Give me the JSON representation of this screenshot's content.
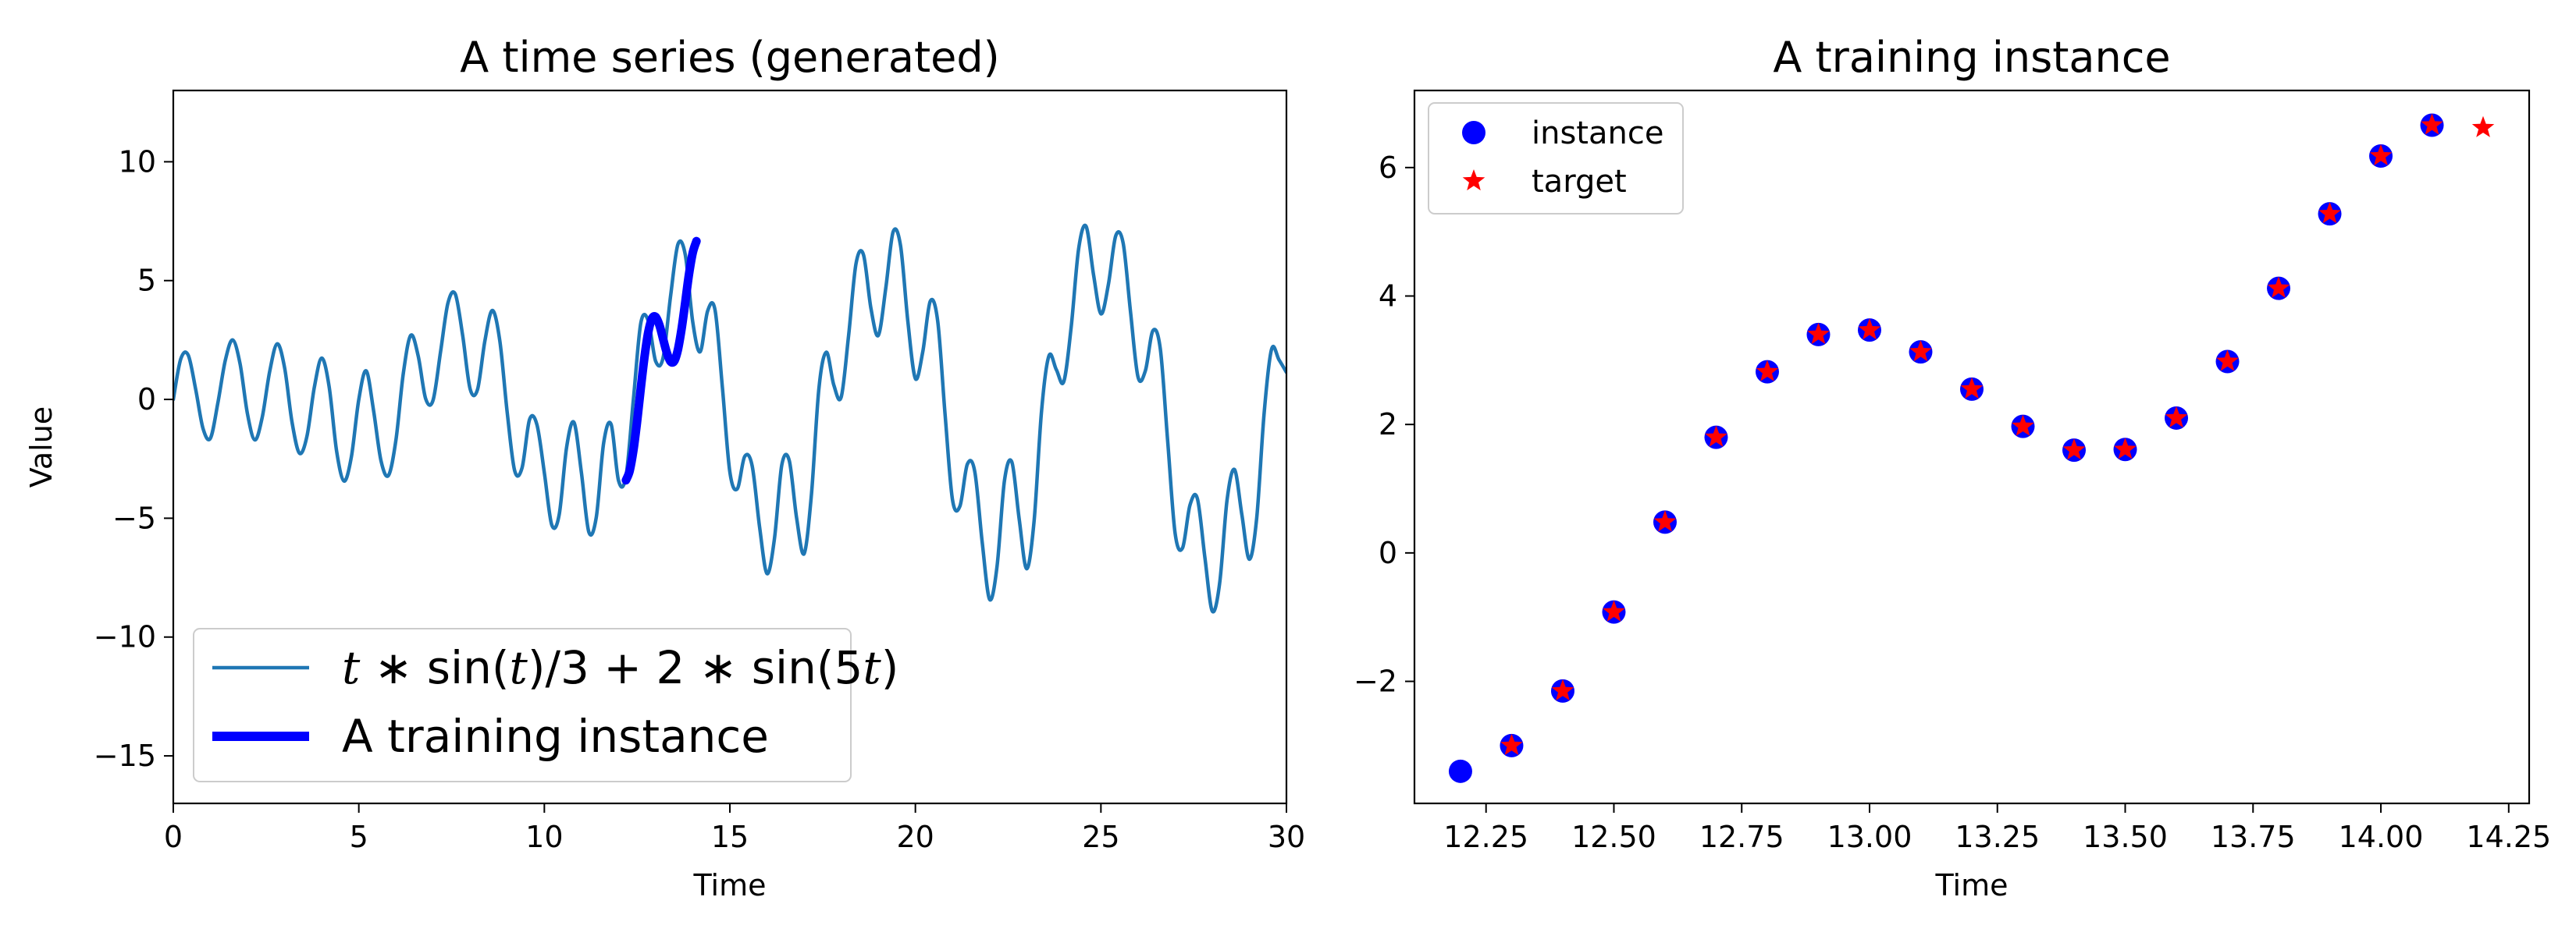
{
  "chart_data": [
    {
      "type": "line",
      "title": "A time series (generated)",
      "xlabel": "Time",
      "ylabel": "Value",
      "xlim": [
        0,
        30
      ],
      "ylim": [
        -17,
        13
      ],
      "xticks": [
        0,
        5,
        10,
        15,
        20,
        25,
        30
      ],
      "xtick_labels": [
        "0",
        "5",
        "10",
        "15",
        "20",
        "25",
        "30"
      ],
      "yticks": [
        -15,
        -10,
        -5,
        0,
        5,
        10
      ],
      "ytick_labels": [
        "−15",
        "−10",
        "−5",
        "0",
        "5",
        "10"
      ],
      "grid": false,
      "legend_placement": "lower-left",
      "series": [
        {
          "name": "t * sin(t)/3 + 2 * sin(5t)",
          "color": "#1f77b4",
          "x": [
            0.0,
            0.2,
            0.4,
            0.6,
            0.8,
            1.0,
            1.2,
            1.4,
            1.6,
            1.8,
            2.0,
            2.2,
            2.4,
            2.6,
            2.8,
            3.0,
            3.2,
            3.4,
            3.6,
            3.8,
            4.0,
            4.2,
            4.4,
            4.6,
            4.8,
            5.0,
            5.2,
            5.4,
            5.6,
            5.8,
            6.0,
            6.2,
            6.4,
            6.6,
            6.8,
            7.0,
            7.2,
            7.4,
            7.6,
            7.8,
            8.0,
            8.2,
            8.4,
            8.6,
            8.8,
            9.0,
            9.2,
            9.4,
            9.6,
            9.8,
            10.0,
            10.2,
            10.4,
            10.6,
            10.8,
            11.0,
            11.2,
            11.4,
            11.6,
            11.8,
            12.0,
            12.2,
            12.4,
            12.6,
            12.8,
            13.0,
            13.2,
            13.4,
            13.6,
            13.8,
            14.0,
            14.2,
            14.4,
            14.6,
            14.8,
            15.0,
            15.2,
            15.4,
            15.6,
            15.8,
            16.0,
            16.2,
            16.4,
            16.6,
            16.8,
            17.0,
            17.2,
            17.4,
            17.6,
            17.8,
            18.0,
            18.2,
            18.4,
            18.6,
            18.8,
            19.0,
            19.2,
            19.4,
            19.6,
            19.8,
            20.0,
            20.2,
            20.4,
            20.6,
            20.8,
            21.0,
            21.2,
            21.4,
            21.6,
            21.8,
            22.0,
            22.2,
            22.4,
            22.6,
            22.8,
            23.0,
            23.2,
            23.4,
            23.6,
            23.8,
            24.0,
            24.2,
            24.4,
            24.6,
            24.8,
            25.0,
            25.2,
            25.4,
            25.6,
            25.8,
            26.0,
            26.2,
            26.4,
            26.6,
            26.8,
            27.0,
            27.2,
            27.4,
            27.6,
            27.8,
            28.0,
            28.2,
            28.4,
            28.6,
            28.8,
            29.0,
            29.2,
            29.4,
            29.6,
            29.8,
            30.0
          ],
          "y": [
            0.0,
            1.696,
            1.872,
            0.453,
            -1.215,
            -1.638,
            -0.164,
            1.627,
            2.503,
            1.489,
            -0.622,
            -1.704,
            -0.726,
            1.195,
            2.339,
            1.33,
            -0.957,
            -2.264,
            -1.567,
            0.497,
            1.737,
            0.543,
            -2.15,
            -3.434,
            -2.407,
            0.005,
            1.199,
            -0.497,
            -2.6,
            -3.196,
            -1.712,
            1.101,
            2.697,
            1.829,
            0.038,
            -0.039,
            1.964,
            4.035,
            4.429,
            2.671,
            0.434,
            0.422,
            2.487,
            3.744,
            2.463,
            -0.56,
            -2.997,
            -2.877,
            -0.854,
            -1.058,
            -3.079,
            -5.278,
            -4.858,
            -2.006,
            -0.974,
            -3.102,
            -5.589,
            -4.954,
            -1.816,
            -1.053,
            -3.422,
            -3.244,
            -0.003,
            3.213,
            3.315,
            1.607,
            1.745,
            4.312,
            6.529,
            6.069,
            3.249,
            2.005,
            3.719,
            3.764,
            0.475,
            -3.058,
            -3.764,
            -2.399,
            -2.787,
            -5.353,
            -7.327,
            -5.889,
            -2.761,
            -2.576,
            -5.009,
            -6.493,
            -3.966,
            0.466,
            1.987,
            0.611,
            0.098,
            2.683,
            5.712,
            6.095,
            3.853,
            2.689,
            4.652,
            7.046,
            6.458,
            3.225,
            0.876,
            2.019,
            4.131,
            3.309,
            -0.633,
            -4.222,
            -4.493,
            -2.728,
            -3.034,
            -5.999,
            -8.414,
            -7.043,
            -3.434,
            -2.641,
            -5.076,
            -7.126,
            -5.095,
            -0.487,
            1.838,
            1.245,
            0.749,
            3.064,
            6.337,
            7.286,
            5.265,
            3.603,
            4.818,
            6.883,
            6.562,
            3.641,
            0.941,
            1.221,
            2.891,
            2.131,
            -1.767,
            -5.636,
            -6.252,
            -4.449,
            -4.174,
            -6.622,
            -8.902,
            -7.742,
            -4.238,
            -2.953,
            -4.871,
            -6.726,
            -4.964,
            -0.555,
            2.116,
            1.665,
            1.141
          ],
          "linewidth": "normal"
        },
        {
          "name": "A training instance",
          "color": "#0000ff",
          "x": [
            12.2,
            12.3,
            12.4,
            12.5,
            12.6,
            12.7,
            12.8,
            12.9,
            13.0,
            13.1,
            13.2,
            13.3,
            13.4,
            13.5,
            13.6,
            13.7,
            13.8,
            13.9,
            14.0,
            14.1
          ],
          "y": [
            -3.4,
            -3.0,
            -2.15,
            -0.92,
            0.48,
            1.8,
            2.82,
            3.4,
            3.47,
            3.13,
            2.55,
            1.97,
            1.6,
            1.61,
            2.1,
            2.98,
            4.12,
            5.28,
            6.18,
            6.66
          ],
          "linewidth": "thick"
        }
      ]
    },
    {
      "type": "scatter",
      "title": "A training instance",
      "xlabel": "Time",
      "ylabel": "",
      "xlim": [
        12.11,
        14.29
      ],
      "ylim": [
        -3.9,
        7.2
      ],
      "xticks": [
        12.25,
        12.5,
        12.75,
        13.0,
        13.25,
        13.5,
        13.75,
        14.0,
        14.25
      ],
      "xtick_labels": [
        "12.25",
        "12.50",
        "12.75",
        "13.00",
        "13.25",
        "13.50",
        "13.75",
        "14.00",
        "14.25"
      ],
      "yticks": [
        -2,
        0,
        2,
        4,
        6
      ],
      "ytick_labels": [
        "−2",
        "0",
        "2",
        "4",
        "6"
      ],
      "grid": false,
      "legend_placement": "top-left",
      "series": [
        {
          "name": "instance",
          "marker": "circle",
          "color": "#0000ff",
          "x": [
            12.2,
            12.3,
            12.4,
            12.5,
            12.6,
            12.7,
            12.8,
            12.9,
            13.0,
            13.1,
            13.2,
            13.3,
            13.4,
            13.5,
            13.6,
            13.7,
            13.8,
            13.9,
            14.0,
            14.1
          ],
          "y": [
            -3.4,
            -3.0,
            -2.15,
            -0.92,
            0.48,
            1.8,
            2.82,
            3.4,
            3.47,
            3.13,
            2.55,
            1.97,
            1.6,
            1.61,
            2.1,
            2.98,
            4.12,
            5.28,
            6.18,
            6.66
          ]
        },
        {
          "name": "target",
          "marker": "star",
          "color": "#ff0000",
          "x": [
            12.3,
            12.4,
            12.5,
            12.6,
            12.7,
            12.8,
            12.9,
            13.0,
            13.1,
            13.2,
            13.3,
            13.4,
            13.5,
            13.6,
            13.7,
            13.8,
            13.9,
            14.0,
            14.1,
            14.2
          ],
          "y": [
            -3.0,
            -2.15,
            -0.92,
            0.48,
            1.8,
            2.82,
            3.4,
            3.47,
            3.13,
            2.55,
            1.97,
            1.6,
            1.61,
            2.1,
            2.98,
            4.12,
            5.28,
            6.18,
            6.66,
            6.62
          ]
        }
      ]
    }
  ]
}
